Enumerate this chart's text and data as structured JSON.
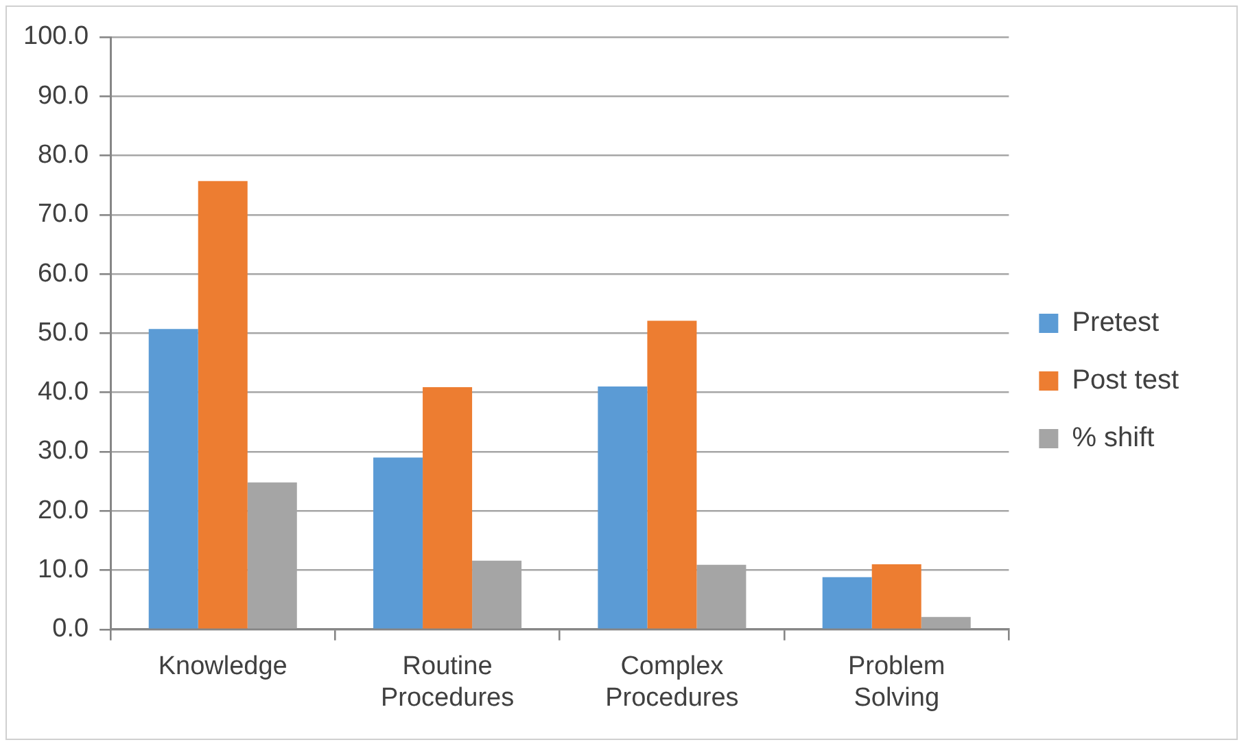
{
  "chart_data": {
    "type": "bar",
    "categories": [
      "Knowledge",
      "Routine Procedures",
      "Complex Procedures",
      "Problem Solving"
    ],
    "series": [
      {
        "name": "Pretest",
        "color": "#5b9bd5",
        "values": [
          50.7,
          29,
          41,
          8.8
        ]
      },
      {
        "name": "Post test",
        "color": "#ed7d31",
        "values": [
          75.7,
          40.9,
          52.1,
          11
        ]
      },
      {
        "name": "% shift",
        "color": "#a5a5a5",
        "values": [
          24.8,
          11.6,
          10.9,
          2.1
        ]
      }
    ],
    "ylim": [
      0,
      100
    ],
    "yticks": [
      {
        "value": 0,
        "label": "0.0"
      },
      {
        "value": 10,
        "label": "10.0"
      },
      {
        "value": 20,
        "label": "20.0"
      },
      {
        "value": 30,
        "label": "30.0"
      },
      {
        "value": 40,
        "label": "40.0"
      },
      {
        "value": 50,
        "label": "50.0"
      },
      {
        "value": 60,
        "label": "60.0"
      },
      {
        "value": 70,
        "label": "70.0"
      },
      {
        "value": 80,
        "label": "80.0"
      },
      {
        "value": 90,
        "label": "90.0"
      },
      {
        "value": 100,
        "label": "100.0"
      }
    ],
    "grid": "y",
    "legend": "right"
  }
}
